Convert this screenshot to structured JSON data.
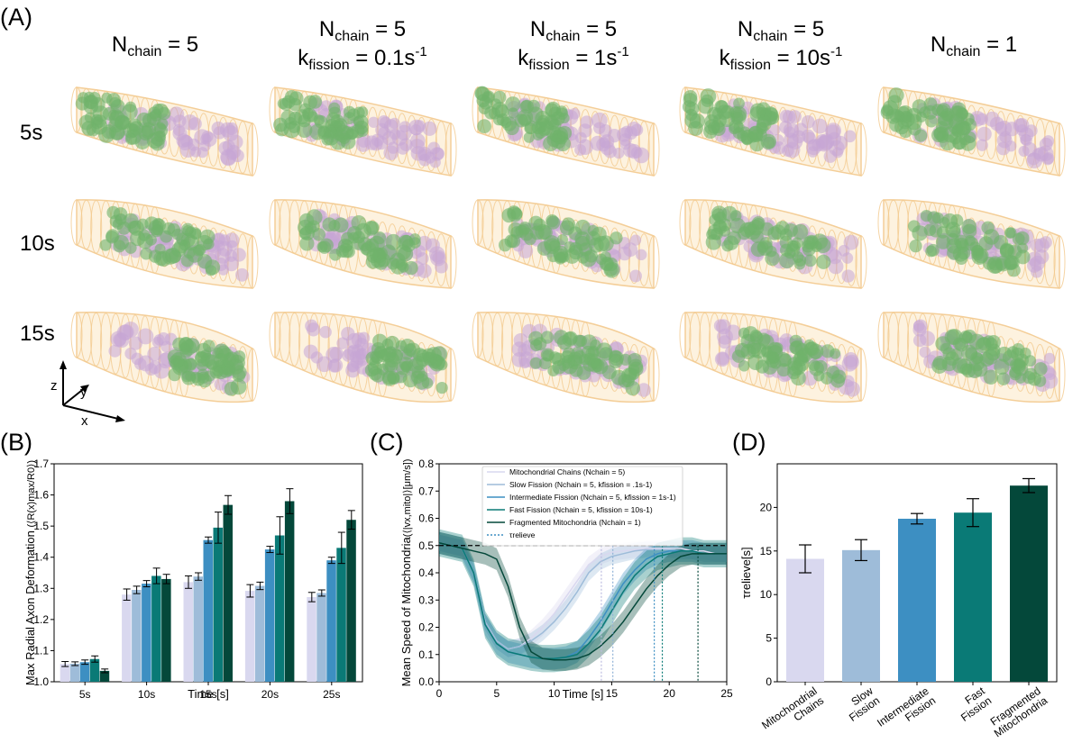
{
  "panel_labels": [
    "(A)",
    "(B)",
    "(C)",
    "(D)"
  ],
  "panel_a": {
    "columns": [
      {
        "line1_base": "N",
        "line1_sub": "chain",
        "line1_rest": " = 5",
        "line2_base": "",
        "line2_sub": "",
        "line2_rest": "",
        "line2_sup": ""
      },
      {
        "line1_base": "N",
        "line1_sub": "chain",
        "line1_rest": " = 5",
        "line2_base": "k",
        "line2_sub": "fission",
        "line2_rest": " = 0.1s",
        "line2_sup": "-1"
      },
      {
        "line1_base": "N",
        "line1_sub": "chain",
        "line1_rest": " = 5",
        "line2_base": "k",
        "line2_sub": "fission",
        "line2_rest": " = 1s",
        "line2_sup": "-1"
      },
      {
        "line1_base": "N",
        "line1_sub": "chain",
        "line1_rest": " = 5",
        "line2_base": "k",
        "line2_sub": "fission",
        "line2_rest": " = 10s",
        "line2_sup": "-1"
      },
      {
        "line1_base": "N",
        "line1_sub": "chain",
        "line1_rest": " = 1",
        "line2_base": "",
        "line2_sub": "",
        "line2_rest": "",
        "line2_sup": ""
      }
    ],
    "rows": [
      "5s",
      "10s",
      "15s"
    ],
    "axis_labels": {
      "z": "z",
      "y": "y",
      "x": "x"
    },
    "colors": {
      "axon": "#f3c98d",
      "axon_fill": "#fdf1dc",
      "green": "#6fb26a",
      "purple": "#c7a6d6"
    }
  },
  "chart_data": [
    {
      "id": "B",
      "type": "bar",
      "xlabel": "Time [s]",
      "ylabel": "Max Radial Axon Deformation",
      "ylabel_math": "(⟨R(x)max/R0⟩)",
      "ylim": [
        1.0,
        1.7
      ],
      "yticks": [
        "1.0",
        "1.1",
        "1.2",
        "1.3",
        "1.4",
        "1.5",
        "1.6",
        "1.7"
      ],
      "categories": [
        "5s",
        "10s",
        "15s",
        "20s",
        "25s"
      ],
      "series": [
        {
          "color": "#d9d8ef",
          "values": [
            1.057,
            1.28,
            1.32,
            1.292,
            1.272
          ],
          "errors": [
            0.008,
            0.018,
            0.02,
            0.02,
            0.015
          ]
        },
        {
          "color": "#9ebcd9",
          "values": [
            1.058,
            1.295,
            1.338,
            1.308,
            1.285
          ],
          "errors": [
            0.006,
            0.012,
            0.012,
            0.012,
            0.01
          ]
        },
        {
          "color": "#3d8fc2",
          "values": [
            1.063,
            1.315,
            1.455,
            1.425,
            1.39
          ],
          "errors": [
            0.007,
            0.01,
            0.01,
            0.01,
            0.01
          ]
        },
        {
          "color": "#0a7a76",
          "values": [
            1.073,
            1.34,
            1.495,
            1.47,
            1.43
          ],
          "errors": [
            0.01,
            0.025,
            0.05,
            0.06,
            0.05
          ]
        },
        {
          "color": "#04483a",
          "values": [
            1.035,
            1.33,
            1.568,
            1.58,
            1.52
          ],
          "errors": [
            0.006,
            0.015,
            0.03,
            0.04,
            0.03
          ]
        }
      ]
    },
    {
      "id": "C",
      "type": "line",
      "xlabel": "Time [s]",
      "ylabel": "Mean Speed of Mitochondria",
      "ylabel_math": "(⟨|vx,mito|⟩[μm/s])",
      "xlim": [
        0,
        25
      ],
      "ylim": [
        0.0,
        0.8
      ],
      "xticks": [
        "0",
        "5",
        "10",
        "15",
        "20",
        "25"
      ],
      "yticks": [
        "0.0",
        "0.1",
        "0.2",
        "0.3",
        "0.4",
        "0.5",
        "0.6",
        "0.7",
        "0.8"
      ],
      "reference_line": 0.5,
      "legend": [
        {
          "label": "Mitochondrial Chains (Nchain = 5)",
          "color": "#d9d8ef"
        },
        {
          "label": "Slow Fission (Nchain = 5, kfission = .1s-1)",
          "color": "#9ebcd9"
        },
        {
          "label": "Intermediate Fission (Nchain = 5, kfission = 1s-1)",
          "color": "#3d8fc2"
        },
        {
          "label": "Fast Fission (Nchain = 5, kfission = 10s-1)",
          "color": "#0a7a76"
        },
        {
          "label": "Fragmented Mitochondria (Nchain = 1)",
          "color": "#04483a"
        },
        {
          "label": "τrelieve",
          "color": "#3d8fc2"
        }
      ],
      "series": [
        {
          "color": "#d9d8ef",
          "band": 0.03,
          "x": [
            0,
            1,
            2,
            3,
            4,
            5,
            6,
            7,
            8,
            9,
            10,
            11,
            12,
            13,
            14,
            15,
            16,
            17,
            18,
            19,
            20,
            21,
            22,
            23,
            24,
            25
          ],
          "y": [
            0.51,
            0.5,
            0.49,
            0.4,
            0.22,
            0.15,
            0.12,
            0.13,
            0.16,
            0.2,
            0.25,
            0.31,
            0.37,
            0.43,
            0.46,
            0.475,
            0.48,
            0.485,
            0.49,
            0.49,
            0.49,
            0.49,
            0.48,
            0.48,
            0.47,
            0.47
          ]
        },
        {
          "color": "#9ebcd9",
          "band": 0.03,
          "x": [
            0,
            1,
            2,
            3,
            4,
            5,
            6,
            7,
            8,
            9,
            10,
            11,
            12,
            13,
            14,
            15,
            16,
            17,
            18,
            19,
            20,
            21,
            22,
            23,
            24,
            25
          ],
          "y": [
            0.51,
            0.5,
            0.49,
            0.4,
            0.22,
            0.15,
            0.12,
            0.13,
            0.15,
            0.18,
            0.22,
            0.27,
            0.33,
            0.4,
            0.44,
            0.46,
            0.47,
            0.48,
            0.485,
            0.485,
            0.485,
            0.48,
            0.48,
            0.47,
            0.47,
            0.47
          ]
        },
        {
          "color": "#3d8fc2",
          "band": 0.04,
          "x": [
            0,
            1,
            2,
            3,
            4,
            5,
            6,
            7,
            8,
            9,
            10,
            11,
            12,
            13,
            14,
            15,
            16,
            17,
            18,
            19,
            20,
            21,
            22,
            23,
            24,
            25
          ],
          "y": [
            0.51,
            0.5,
            0.49,
            0.4,
            0.21,
            0.14,
            0.11,
            0.1,
            0.09,
            0.085,
            0.085,
            0.09,
            0.11,
            0.16,
            0.22,
            0.29,
            0.36,
            0.41,
            0.45,
            0.47,
            0.48,
            0.48,
            0.48,
            0.47,
            0.47,
            0.47
          ]
        },
        {
          "color": "#0a7a76",
          "band": 0.05,
          "x": [
            0,
            1,
            2,
            3,
            4,
            5,
            6,
            7,
            8,
            9,
            10,
            11,
            12,
            13,
            14,
            15,
            16,
            17,
            18,
            19,
            20,
            21,
            22,
            23,
            24,
            25
          ],
          "y": [
            0.51,
            0.5,
            0.49,
            0.4,
            0.21,
            0.14,
            0.11,
            0.1,
            0.09,
            0.085,
            0.085,
            0.09,
            0.1,
            0.14,
            0.19,
            0.26,
            0.33,
            0.39,
            0.43,
            0.46,
            0.47,
            0.48,
            0.48,
            0.47,
            0.47,
            0.47
          ]
        },
        {
          "color": "#04483a",
          "band": 0.04,
          "x": [
            0,
            1,
            2,
            3,
            4,
            5,
            6,
            7,
            8,
            9,
            10,
            11,
            12,
            13,
            14,
            15,
            16,
            17,
            18,
            19,
            20,
            21,
            22,
            23,
            24,
            25
          ],
          "y": [
            0.51,
            0.5,
            0.49,
            0.48,
            0.47,
            0.45,
            0.35,
            0.2,
            0.11,
            0.085,
            0.08,
            0.08,
            0.085,
            0.1,
            0.13,
            0.17,
            0.22,
            0.28,
            0.34,
            0.39,
            0.43,
            0.46,
            0.47,
            0.47,
            0.47,
            0.47
          ]
        }
      ],
      "tau_lines": [
        {
          "x": 14.1,
          "color": "#bcbce0"
        },
        {
          "x": 15.1,
          "color": "#8fb1d6"
        },
        {
          "x": 18.7,
          "color": "#3d8fc2"
        },
        {
          "x": 19.4,
          "color": "#0a7a76"
        },
        {
          "x": 22.5,
          "color": "#04483a"
        }
      ]
    },
    {
      "id": "D",
      "type": "bar",
      "ylabel": "τrelieve[s]",
      "ylim": [
        0,
        25
      ],
      "yticks": [
        "0",
        "5",
        "10",
        "15",
        "20"
      ],
      "categories": [
        "Mitochondrial Chains",
        "Slow Fission",
        "Intermediate Fission",
        "Fast Fission",
        "Fragmented Mitochondria"
      ],
      "values": [
        14.1,
        15.1,
        18.7,
        19.4,
        22.5
      ],
      "errors": [
        1.6,
        1.2,
        0.6,
        1.6,
        0.8
      ],
      "colors": [
        "#d9d8ef",
        "#9ebcd9",
        "#3d8fc2",
        "#0a7a76",
        "#04483a"
      ]
    }
  ]
}
